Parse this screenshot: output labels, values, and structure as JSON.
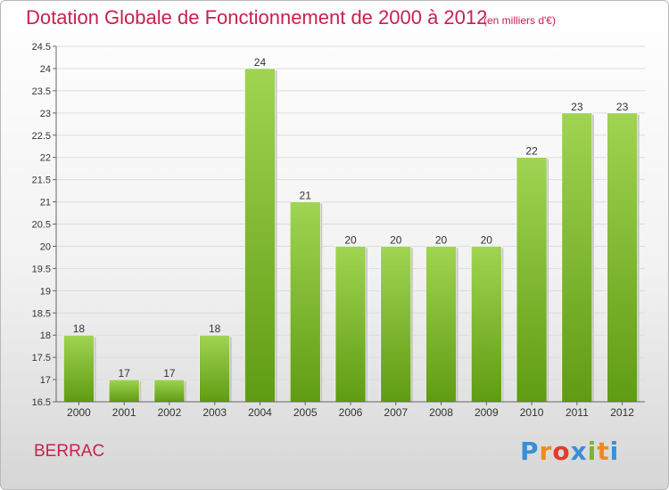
{
  "header": {
    "title": "Dotation Globale de Fonctionnement de 2000 à 2012",
    "unit": "(en milliers d'€)"
  },
  "footer": {
    "commune": "BERRAC",
    "logo_letters": [
      "P",
      "r",
      "o",
      "x",
      "i",
      "t",
      "i"
    ],
    "logo_colors": [
      "#3a8fd6",
      "#f08a1c",
      "#e23b2a",
      "#3a8fd6",
      "#79b52e",
      "#f08a1c",
      "#3a8fd6"
    ]
  },
  "colors": {
    "bar_top": "#a0d452",
    "bar_bottom": "#5f9c13",
    "text": "#c8214f"
  },
  "chart_data": {
    "type": "bar",
    "title": "Dotation Globale de Fonctionnement de 2000 à 2012",
    "subtitle": "(en milliers d'€)",
    "categories": [
      "2000",
      "2001",
      "2002",
      "2003",
      "2004",
      "2005",
      "2006",
      "2007",
      "2008",
      "2009",
      "2010",
      "2011",
      "2012"
    ],
    "values": [
      18,
      17,
      17,
      18,
      24,
      21,
      20,
      20,
      20,
      20,
      22,
      23,
      23
    ],
    "labels": [
      "18",
      "17",
      "17",
      "18",
      "24",
      "21",
      "20",
      "20",
      "20",
      "20",
      "22",
      "23",
      "23"
    ],
    "ylim": [
      16.5,
      24.5
    ],
    "yticks": [
      "16.5",
      "17",
      "17.5",
      "18",
      "18.5",
      "19",
      "19.5",
      "20",
      "20.5",
      "21",
      "21.5",
      "22",
      "22.5",
      "23",
      "23.5",
      "24",
      "24.5"
    ],
    "grid": true
  }
}
